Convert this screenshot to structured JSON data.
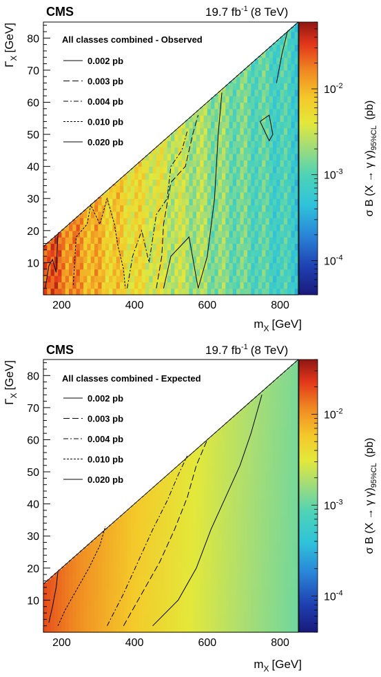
{
  "chart_data": [
    {
      "type": "heatmap",
      "experiment": "CMS",
      "lumi_text": "19.7 fb",
      "lumi_exp": "-1",
      "energy_text": "(8 TeV)",
      "title": "All classes combined - Observed",
      "xlabel": "m",
      "xlabel_sub": "X",
      "xlabel_unit": "[GeV]",
      "ylabel": "Γ",
      "ylabel_sub": "X",
      "ylabel_unit": "[GeV]",
      "zlabel": "σ B (X → γ γ)",
      "zlabel_sub": "95%CL",
      "zlabel_unit": "(pb)",
      "xlim": [
        150,
        850
      ],
      "ylim": [
        0,
        85
      ],
      "zlim": [
        4e-05,
        0.06
      ],
      "z_log": true,
      "x_ticks": [
        200,
        400,
        600,
        800
      ],
      "y_ticks": [
        10,
        20,
        30,
        40,
        50,
        60,
        70,
        80
      ],
      "z_ticks": [
        {
          "base": "10",
          "exp": "-4",
          "value": 0.0001
        },
        {
          "base": "10",
          "exp": "-3",
          "value": 0.001
        },
        {
          "base": "10",
          "exp": "-2",
          "value": 0.01
        }
      ],
      "contour_levels": [
        {
          "label": "0.002 pb",
          "style": "solid"
        },
        {
          "label": "0.003 pb",
          "style": "long-dash"
        },
        {
          "label": "0.004 pb",
          "style": "dash-dot"
        },
        {
          "label": "0.010 pb",
          "style": "dotted"
        },
        {
          "label": "0.020 pb",
          "style": "solid"
        }
      ],
      "contours": [
        {
          "level": "0.020 pb",
          "points": [
            [
              155,
              2
            ],
            [
              165,
              9
            ],
            [
              175,
              11
            ],
            [
              185,
              7
            ],
            [
              190,
              19
            ]
          ]
        },
        {
          "level": "0.010 pb",
          "points": [
            [
              232,
              3
            ],
            [
              240,
              18
            ],
            [
              270,
              22
            ],
            [
              280,
              28
            ],
            [
              305,
              22
            ],
            [
              325,
              30
            ],
            [
              345,
              22
            ],
            [
              355,
              15
            ],
            [
              370,
              8
            ],
            [
              375,
              2
            ]
          ]
        },
        {
          "level": "0.004 pb",
          "points": [
            [
              380,
              2
            ],
            [
              395,
              12
            ],
            [
              420,
              20
            ],
            [
              440,
              10
            ],
            [
              460,
              25
            ],
            [
              490,
              30
            ],
            [
              500,
              40
            ],
            [
              530,
              45
            ],
            [
              545,
              51
            ]
          ]
        },
        {
          "level": "0.003 pb",
          "points": [
            [
              460,
              2
            ],
            [
              475,
              12
            ],
            [
              480,
              22
            ],
            [
              500,
              35
            ],
            [
              540,
              40
            ],
            [
              560,
              50
            ],
            [
              575,
              56
            ]
          ]
        },
        {
          "level": "0.002 pb",
          "points": [
            [
              480,
              2
            ],
            [
              500,
              12
            ],
            [
              550,
              18
            ],
            [
              575,
              2
            ],
            [
              600,
              12
            ],
            [
              620,
              30
            ],
            [
              630,
              50
            ],
            [
              640,
              63
            ]
          ]
        }
      ],
      "contour_islands": [
        {
          "level": "0.002 pb",
          "points": [
            [
              745,
              54
            ],
            [
              770,
              56
            ],
            [
              780,
              50
            ],
            [
              770,
              48
            ],
            [
              745,
              54
            ]
          ]
        },
        {
          "level": "0.002 pb",
          "points": [
            [
              790,
              66
            ],
            [
              805,
              75
            ],
            [
              820,
              82
            ],
            [
              840,
              84
            ]
          ]
        }
      ]
    },
    {
      "type": "heatmap",
      "experiment": "CMS",
      "lumi_text": "19.7 fb",
      "lumi_exp": "-1",
      "energy_text": "(8 TeV)",
      "title": "All classes combined - Expected",
      "xlabel": "m",
      "xlabel_sub": "X",
      "xlabel_unit": "[GeV]",
      "ylabel": "Γ",
      "ylabel_sub": "X",
      "ylabel_unit": "[GeV]",
      "zlabel": "σ B (X → γ γ)",
      "zlabel_sub": "95%CL",
      "zlabel_unit": "(pb)",
      "xlim": [
        150,
        850
      ],
      "ylim": [
        0,
        85
      ],
      "zlim": [
        4e-05,
        0.04
      ],
      "z_log": true,
      "x_ticks": [
        200,
        400,
        600,
        800
      ],
      "y_ticks": [
        10,
        20,
        30,
        40,
        50,
        60,
        70,
        80
      ],
      "z_ticks": [
        {
          "base": "10",
          "exp": "-4",
          "value": 0.0001
        },
        {
          "base": "10",
          "exp": "-3",
          "value": 0.001
        },
        {
          "base": "10",
          "exp": "-2",
          "value": 0.01
        }
      ],
      "contour_levels": [
        {
          "label": "0.002 pb",
          "style": "solid"
        },
        {
          "label": "0.003 pb",
          "style": "long-dash"
        },
        {
          "label": "0.004 pb",
          "style": "dash-dot"
        },
        {
          "label": "0.010 pb",
          "style": "dotted"
        },
        {
          "label": "0.020 pb",
          "style": "solid"
        }
      ],
      "contours": [
        {
          "level": "0.020 pb",
          "points": [
            [
              165,
              3
            ],
            [
              175,
              8
            ],
            [
              185,
              14
            ],
            [
              190,
              19
            ]
          ]
        },
        {
          "level": "0.010 pb",
          "points": [
            [
              190,
              2
            ],
            [
              210,
              7
            ],
            [
              240,
              13
            ],
            [
              275,
              20
            ],
            [
              305,
              27
            ],
            [
              320,
              33
            ]
          ]
        },
        {
          "level": "0.004 pb",
          "points": [
            [
              325,
              2
            ],
            [
              370,
              12
            ],
            [
              410,
              22
            ],
            [
              450,
              32
            ],
            [
              490,
              41
            ],
            [
              520,
              49
            ],
            [
              545,
              55
            ]
          ]
        },
        {
          "level": "0.003 pb",
          "points": [
            [
              370,
              2
            ],
            [
              420,
              12
            ],
            [
              470,
              22
            ],
            [
              510,
              32
            ],
            [
              545,
              42
            ],
            [
              570,
              52
            ],
            [
              600,
              60
            ]
          ]
        },
        {
          "level": "0.002 pb",
          "points": [
            [
              450,
              2
            ],
            [
              520,
              10
            ],
            [
              570,
              20
            ],
            [
              610,
              32
            ],
            [
              650,
              42
            ],
            [
              690,
              52
            ],
            [
              720,
              62
            ],
            [
              750,
              74
            ]
          ]
        }
      ],
      "contour_islands": []
    }
  ]
}
